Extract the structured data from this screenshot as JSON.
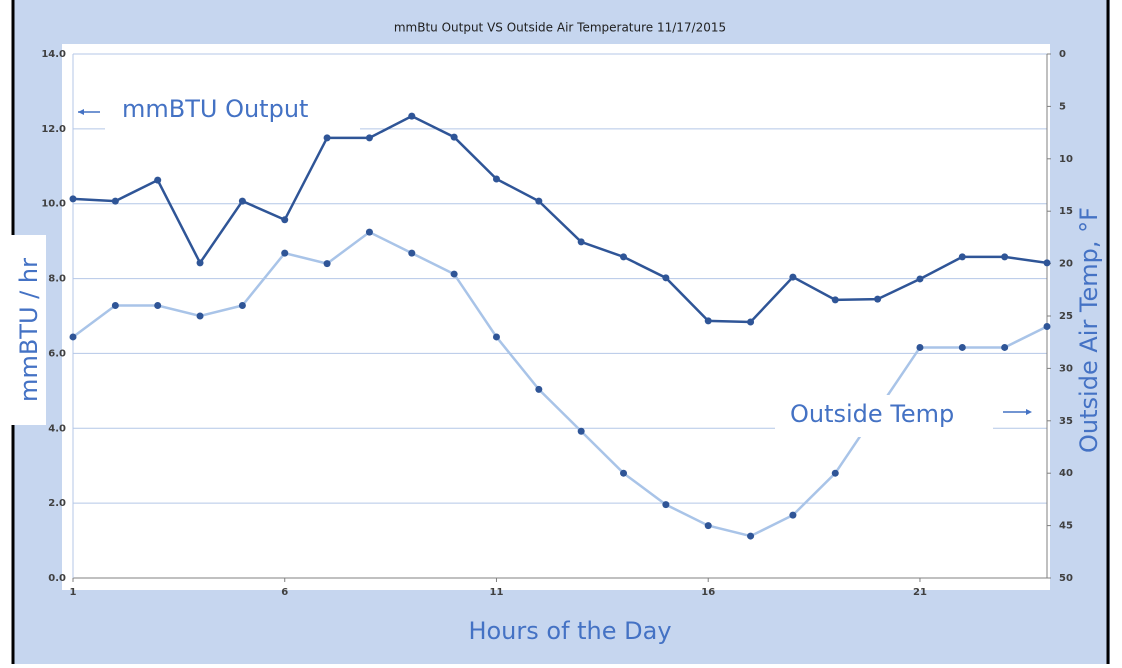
{
  "chart_data": {
    "type": "line",
    "title": "mmBtu Output VS Outside Air Temperature 11/17/2015",
    "x_label": "Hours of the Day",
    "y_label": "mmBTU / hr",
    "y2_label": "Outside Air Temp, °F",
    "annotations": [
      "mmBTU Output",
      "Outside Temp"
    ],
    "x": [
      1,
      2,
      3,
      4,
      5,
      6,
      7,
      8,
      9,
      10,
      11,
      12,
      13,
      14,
      15,
      16,
      17,
      18,
      19,
      20,
      21,
      22,
      23,
      24
    ],
    "xlim": [
      1,
      24
    ],
    "xticks": [
      1,
      6,
      11,
      16,
      21
    ],
    "ylim": [
      0,
      14
    ],
    "yticks": [
      {
        "value": 0,
        "label": "0.0"
      },
      {
        "value": 2,
        "label": "2.0"
      },
      {
        "value": 4,
        "label": "4.0"
      },
      {
        "value": 6,
        "label": "6.0"
      },
      {
        "value": 8,
        "label": "8.0"
      },
      {
        "value": 10,
        "label": "10.0"
      },
      {
        "value": 12,
        "label": "12.0"
      },
      {
        "value": 14,
        "label": "14.0"
      }
    ],
    "y2lim": [
      0,
      50
    ],
    "y2_inverted": true,
    "y2ticks": [
      0,
      5,
      10,
      15,
      20,
      25,
      30,
      35,
      40,
      45,
      50
    ],
    "grid": true,
    "series": [
      {
        "color": "#2f5597",
        "marker_color": "#2f5597",
        "values": [
          10.13,
          10.07,
          10.63,
          8.42,
          10.07,
          9.57,
          11.76,
          11.76,
          12.34,
          11.78,
          10.66,
          10.07,
          8.98,
          8.58,
          8.02,
          6.87,
          6.84,
          8.04,
          7.43,
          7.45,
          7.99,
          8.58,
          8.58,
          8.42
        ]
      },
      {
        "color": "#a9c4e8",
        "marker_color": "#2f5597",
        "axis": "y2",
        "values": [
          27,
          24,
          24,
          25,
          24,
          19,
          20,
          17,
          19,
          21,
          27,
          32,
          36,
          40,
          43,
          45,
          46,
          44,
          40,
          34,
          28,
          28,
          28,
          26
        ]
      }
    ]
  }
}
